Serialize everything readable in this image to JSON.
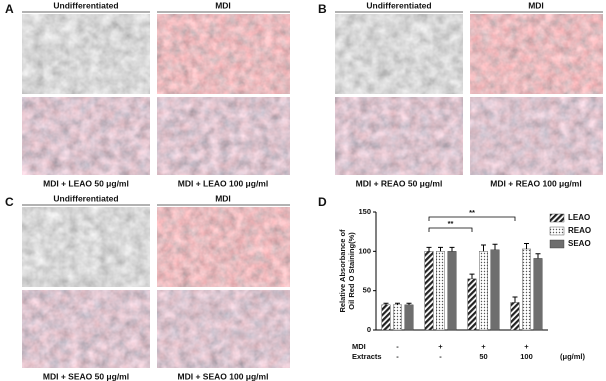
{
  "panels": [
    {
      "label": "A",
      "headers": [
        "Undifferentiated",
        "MDI"
      ],
      "captions": [
        "MDI + LEAO 50 μg/ml",
        "MDI + LEAO 100 μg/ml"
      ]
    },
    {
      "label": "B",
      "headers": [
        "Undifferentiated",
        "MDI"
      ],
      "captions": [
        "MDI + REAO 50 μg/ml",
        "MDI + REAO 100 μg/ml"
      ]
    },
    {
      "label": "C",
      "headers": [
        "Undifferentiated",
        "MDI"
      ],
      "captions": [
        "MDI + SEAO 50 μg/ml",
        "MDI + SEAO 100 μg/ml"
      ]
    }
  ],
  "chart_data": {
    "type": "bar",
    "panel_label": "D",
    "y_label": [
      "Relative Absorbance of",
      "Oil Red O Staining(%)"
    ],
    "row_labels": [
      "MDI",
      "Extracts"
    ],
    "categories": [
      [
        "-",
        "-"
      ],
      [
        "+",
        "-"
      ],
      [
        "+",
        "50"
      ],
      [
        "+",
        "100"
      ]
    ],
    "x_unit": "(μg/ml)",
    "series": [
      {
        "name": "LEAO",
        "color": "#222222",
        "pattern": "hatch",
        "values": [
          32,
          100,
          65,
          35
        ],
        "errors": [
          2,
          5,
          6,
          7
        ]
      },
      {
        "name": "REAO",
        "color": "#555555",
        "pattern": "dots",
        "values": [
          32,
          100,
          100,
          103
        ],
        "errors": [
          2,
          5,
          8,
          7
        ]
      },
      {
        "name": "SEAO",
        "color": "#6e6e6e",
        "pattern": "solid",
        "values": [
          32,
          100,
          102,
          91
        ],
        "errors": [
          2,
          5,
          7,
          6
        ]
      }
    ],
    "annotations": [
      "**",
      "**"
    ],
    "ylim": [
      0,
      150
    ],
    "yticks": [
      0,
      50,
      100,
      150
    ],
    "legend": "upper right"
  }
}
